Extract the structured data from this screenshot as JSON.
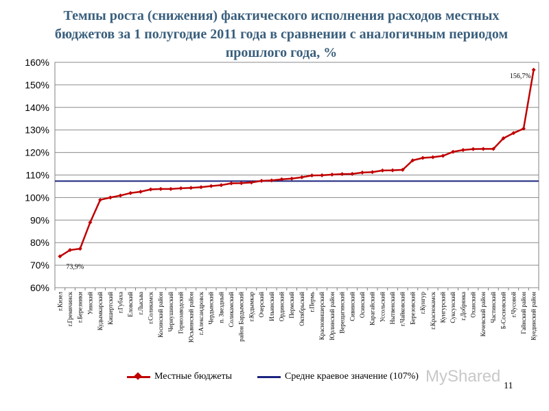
{
  "chart_data": {
    "type": "line",
    "title": "Темпы роста (снижения) фактического исполнения расходов местных бюджетов за 1 полугодие 2011 года в сравнении с аналогичным периодом прошлого года, %",
    "ylim": [
      60,
      160
    ],
    "y_ticks": [
      "60%",
      "70%",
      "80%",
      "90%",
      "100%",
      "110%",
      "120%",
      "130%",
      "140%",
      "150%",
      "160%"
    ],
    "grid": "horizontal",
    "legend_position": "bottom",
    "categories": [
      "г.Кизел",
      "г.Гремячинск",
      "г.Березники",
      "Уинский",
      "Кудымкарский",
      "Кишертский",
      "г.Губаха",
      "Еловский",
      "г.Лысьва",
      "г.Соликамск",
      "Косинский район",
      "Чернушинский",
      "Горнозаводский",
      "Юсьвинский район",
      "г.Александровск",
      "Чердынский",
      "п. Звездный",
      "Соликамский",
      "район Бардымский",
      "г.Кудымкар",
      "Очерский",
      "Ильинский",
      "Ординский",
      "Пермский",
      "Октябрьский",
      "г.Пермь",
      "Красновишерский",
      "Юрлинский район",
      "Верещагинский",
      "Сивинский",
      "Осинский",
      "Карагайский",
      "Уссольский",
      "Нытвенский",
      "г.Чайковский",
      "Березовский",
      "г.Кунгур",
      "г.Краснокамск",
      "Кунгурский",
      "Суксунский",
      "г.Добрянка",
      "Оханский",
      "Кочевский район",
      "Частинский",
      "Б-Сосновский",
      "г.Чусовой",
      "Гайнский район",
      "Куединский район"
    ],
    "series": [
      {
        "name": "Местные бюджеты",
        "color": "#c00000",
        "values": [
          73.9,
          76.7,
          77.3,
          89.0,
          99.0,
          100.0,
          100.9,
          102.0,
          102.6,
          103.6,
          103.8,
          103.8,
          104.1,
          104.3,
          104.6,
          105.1,
          105.5,
          106.3,
          106.4,
          106.7,
          107.4,
          107.6,
          108.1,
          108.4,
          109.0,
          109.8,
          109.9,
          110.2,
          110.4,
          110.5,
          111.1,
          111.3,
          112.0,
          112.1,
          112.3,
          116.5,
          117.6,
          117.9,
          118.5,
          120.3,
          121.1,
          121.5,
          121.6,
          121.6,
          126.3,
          128.6,
          130.6,
          156.7
        ]
      },
      {
        "name": "Средне краевое значение (107%)",
        "color": "#1a237e",
        "value": 107.3
      }
    ],
    "annotations": [
      {
        "label": "73,9%",
        "index": 0
      },
      {
        "label": "156,7%",
        "index": 47
      }
    ]
  },
  "watermark": "MyShared",
  "page_number": "11"
}
